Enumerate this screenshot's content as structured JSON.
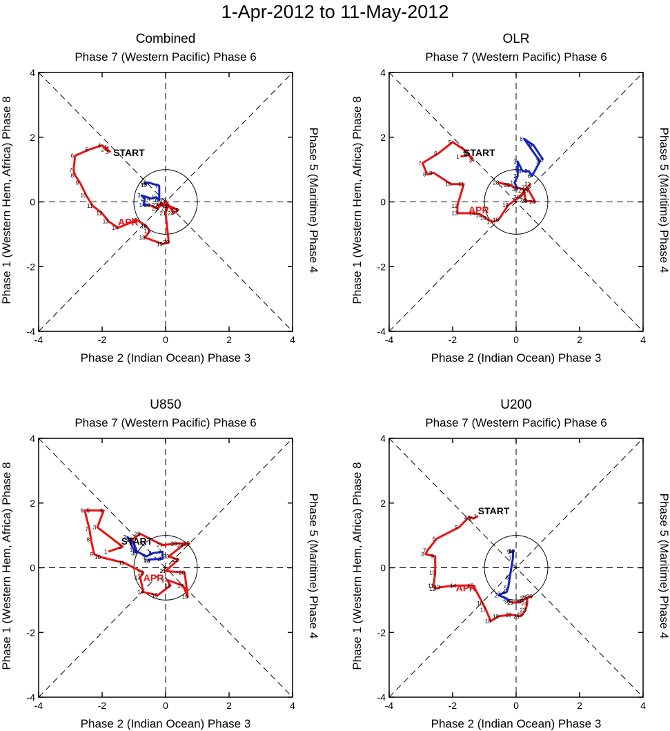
{
  "title": "1-Apr-2012 to 11-May-2012",
  "axis_labels": {
    "top": "Phase 7 (Western Pacific) Phase 6",
    "bottom": "Phase 2 (Indian Ocean) Phase 3",
    "left": "Phase 1 (Western Hem, Africa) Phase 8",
    "right": "Phase 5 (Maritime) Phase 4"
  },
  "colors": {
    "april": "#ee1111",
    "may": "#1122cc",
    "axes": "#000000"
  },
  "chart_data": [
    {
      "type": "line",
      "title": "Combined",
      "xlim": [
        -4,
        4
      ],
      "ylim": [
        -4,
        4
      ],
      "xticks": [
        -4,
        -2,
        0,
        2,
        4
      ],
      "yticks": [
        -4,
        -2,
        0,
        2,
        4
      ],
      "start_label": "START",
      "apr_label": "APR",
      "start_at": [
        -1.65,
        1.42
      ],
      "apr_label_at": [
        -1.5,
        -0.72
      ],
      "series": [
        {
          "name": "APR",
          "color": "#ee1111",
          "points": [
            [
              -1.8,
              1.7
            ],
            [
              -1.9,
              1.62
            ],
            [
              -1.75,
              1.55
            ],
            [
              -2.0,
              1.75
            ],
            [
              -2.4,
              1.62
            ],
            [
              -2.85,
              1.43
            ],
            [
              -2.9,
              0.98
            ],
            [
              -2.85,
              0.82
            ],
            [
              -2.7,
              0.6
            ],
            [
              -2.5,
              0.2
            ],
            [
              -2.3,
              -0.12
            ],
            [
              -2.0,
              -0.35
            ],
            [
              -1.8,
              -0.6
            ],
            [
              -1.5,
              -0.8
            ],
            [
              -0.9,
              -0.56
            ],
            [
              -0.6,
              -0.75
            ],
            [
              -0.5,
              -0.9
            ],
            [
              -0.65,
              -1.1
            ],
            [
              -0.1,
              -1.3
            ],
            [
              0.1,
              -1.25
            ],
            [
              0.0,
              -0.35
            ],
            [
              0.05,
              -0.2
            ],
            [
              0.0,
              0.04
            ],
            [
              0.25,
              -0.35
            ],
            [
              0.4,
              -0.25
            ],
            [
              0.1,
              -0.12
            ],
            [
              -0.25,
              -0.1
            ],
            [
              -0.1,
              -0.05
            ],
            [
              -0.25,
              -0.2
            ],
            [
              -0.5,
              -0.1
            ]
          ],
          "labels": [
            "1",
            "2",
            "3",
            "4",
            "5",
            "6",
            "7",
            "8",
            "9",
            "10",
            "11",
            "12",
            "13",
            "14",
            "15",
            "16",
            "17",
            "18",
            "19",
            "20",
            "21",
            "22",
            "23",
            "24",
            "25",
            "26",
            "27",
            "28",
            "29",
            "30"
          ]
        },
        {
          "name": "MAY",
          "color": "#1122cc",
          "points": [
            [
              -0.5,
              -0.1
            ],
            [
              -0.7,
              -0.1
            ],
            [
              -0.65,
              0.1
            ],
            [
              -0.75,
              0.2
            ],
            [
              -0.45,
              0.1
            ],
            [
              -0.3,
              0.15
            ],
            [
              -0.2,
              0.05
            ],
            [
              -0.2,
              0.5
            ],
            [
              -0.55,
              0.6
            ],
            [
              -0.65,
              0.58
            ],
            [
              -0.6,
              0.52
            ]
          ],
          "labels": [
            "",
            "1",
            "2",
            "3",
            "4",
            "5",
            "6",
            "7",
            "8",
            "9",
            "10"
          ]
        }
      ]
    },
    {
      "type": "line",
      "title": "OLR",
      "xlim": [
        -4,
        4
      ],
      "ylim": [
        -4,
        4
      ],
      "xticks": [
        -4,
        -2,
        0,
        2,
        4
      ],
      "yticks": [
        -4,
        -2,
        0,
        2,
        4
      ],
      "start_label": "START",
      "apr_label": "APR",
      "start_at": [
        -1.65,
        1.42
      ],
      "apr_label_at": [
        -1.5,
        -0.35
      ],
      "series": [
        {
          "name": "APR",
          "color": "#ee1111",
          "points": [
            [
              -1.75,
              1.4
            ],
            [
              -1.5,
              1.45
            ],
            [
              -1.35,
              1.28
            ],
            [
              -1.55,
              1.55
            ],
            [
              -2.0,
              1.85
            ],
            [
              -2.45,
              1.5
            ],
            [
              -2.95,
              1.2
            ],
            [
              -2.8,
              0.85
            ],
            [
              -2.6,
              0.9
            ],
            [
              -2.05,
              0.55
            ],
            [
              -1.65,
              0.55
            ],
            [
              -1.85,
              -0.12
            ],
            [
              -1.85,
              -0.35
            ],
            [
              -1.3,
              -0.35
            ],
            [
              -1.1,
              -0.4
            ],
            [
              -0.95,
              -0.5
            ],
            [
              -0.75,
              -0.62
            ],
            [
              -0.55,
              -0.55
            ],
            [
              -0.25,
              -0.1
            ],
            [
              0.1,
              0.15
            ],
            [
              0.45,
              0.55
            ],
            [
              0.35,
              0.45
            ],
            [
              0.25,
              0.35
            ],
            [
              0.3,
              0.05
            ],
            [
              0.35,
              0.03
            ],
            [
              0.6,
              0.0
            ],
            [
              0.4,
              0.35
            ],
            [
              -0.55,
              0.6
            ],
            [
              -0.2,
              0.52
            ],
            [
              0.05,
              0.4
            ]
          ],
          "labels": [
            "1",
            "2",
            "3",
            "4",
            "5",
            "6",
            "7",
            "8",
            "9",
            "10",
            "11",
            "12",
            "13",
            "14",
            "15",
            "16",
            "17",
            "18",
            "19",
            "20",
            "21",
            "22",
            "23",
            "24",
            "25",
            "26",
            "27",
            "28",
            "29",
            "30"
          ]
        },
        {
          "name": "MAY",
          "color": "#1122cc",
          "points": [
            [
              0.05,
              0.4
            ],
            [
              -0.05,
              0.6
            ],
            [
              0.05,
              0.8
            ],
            [
              0.05,
              1.25
            ],
            [
              0.2,
              0.95
            ],
            [
              0.4,
              0.95
            ],
            [
              0.5,
              0.8
            ],
            [
              0.75,
              1.25
            ],
            [
              0.25,
              1.95
            ],
            [
              0.55,
              1.75
            ],
            [
              0.85,
              1.3
            ]
          ],
          "labels": [
            "",
            "1",
            "2",
            "3",
            "4",
            "5",
            "6",
            "7",
            "8",
            "9",
            "10"
          ]
        }
      ]
    },
    {
      "type": "line",
      "title": "U850",
      "xlim": [
        -4,
        4
      ],
      "ylim": [
        -4,
        4
      ],
      "xticks": [
        -4,
        -2,
        0,
        2,
        4
      ],
      "yticks": [
        -4,
        -2,
        0,
        2,
        4
      ],
      "start_label": "START",
      "apr_label": "APR",
      "start_at": [
        -1.4,
        0.72
      ],
      "apr_label_at": [
        -0.7,
        -0.42
      ],
      "series": [
        {
          "name": "APR",
          "color": "#ee1111",
          "points": [
            [
              -1.8,
              0.5
            ],
            [
              -1.35,
              0.65
            ],
            [
              -2.15,
              1.25
            ],
            [
              -1.95,
              1.77
            ],
            [
              -2.35,
              1.77
            ],
            [
              -2.55,
              1.77
            ],
            [
              -2.4,
              1.2
            ],
            [
              -2.35,
              0.87
            ],
            [
              -2.25,
              0.42
            ],
            [
              -2.05,
              0.33
            ],
            [
              -1.3,
              0.15
            ],
            [
              -0.7,
              -0.15
            ],
            [
              -0.8,
              -0.3
            ],
            [
              -0.7,
              -0.75
            ],
            [
              -0.25,
              -0.85
            ],
            [
              0.15,
              -0.55
            ],
            [
              0.05,
              -0.38
            ],
            [
              0.55,
              -0.55
            ],
            [
              0.7,
              -0.9
            ],
            [
              0.6,
              -0.15
            ],
            [
              0.0,
              -0.1
            ],
            [
              0.4,
              0.25
            ],
            [
              0.1,
              0.35
            ],
            [
              0.55,
              0.7
            ],
            [
              0.75,
              0.75
            ],
            [
              0.35,
              0.75
            ],
            [
              -0.1,
              0.7
            ],
            [
              -0.8,
              1.05
            ],
            [
              -1.05,
              0.87
            ],
            [
              -0.9,
              0.45
            ]
          ],
          "labels": [
            "1",
            "2",
            "3",
            "4",
            "5",
            "6",
            "7",
            "8",
            "9",
            "10",
            "11",
            "12",
            "13",
            "14",
            "15",
            "16",
            "17",
            "18",
            "19",
            "20",
            "21",
            "22",
            "23",
            "24",
            "25",
            "26",
            "27",
            "28",
            "29",
            "30"
          ]
        },
        {
          "name": "MAY",
          "color": "#1122cc",
          "points": [
            [
              -0.9,
              0.45
            ],
            [
              -1.0,
              0.55
            ],
            [
              -1.2,
              0.95
            ],
            [
              -1.0,
              0.75
            ],
            [
              -0.9,
              0.5
            ],
            [
              -0.6,
              0.35
            ],
            [
              -0.4,
              0.45
            ],
            [
              -0.1,
              0.5
            ],
            [
              -0.1,
              0.28
            ],
            [
              -0.55,
              0.25
            ],
            [
              -0.5,
              0.2
            ]
          ],
          "labels": [
            "",
            "1",
            "2",
            "3",
            "4",
            "5",
            "6",
            "7",
            "8",
            "9",
            "10"
          ]
        }
      ]
    },
    {
      "type": "line",
      "title": "U200",
      "xlim": [
        -4,
        4
      ],
      "ylim": [
        -4,
        4
      ],
      "xticks": [
        -4,
        -2,
        0,
        2,
        4
      ],
      "yticks": [
        -4,
        -2,
        0,
        2,
        4
      ],
      "start_label": "START",
      "apr_label": "APR",
      "start_at": [
        -1.2,
        1.65
      ],
      "apr_label_at": [
        -1.9,
        -0.72
      ],
      "series": [
        {
          "name": "APR",
          "color": "#ee1111",
          "points": [
            [
              -1.2,
              1.6
            ],
            [
              -1.35,
              1.52
            ],
            [
              -1.4,
              1.55
            ],
            [
              -1.5,
              1.55
            ],
            [
              -1.8,
              1.25
            ],
            [
              -2.5,
              0.9
            ],
            [
              -2.8,
              0.53
            ],
            [
              -2.85,
              0.42
            ],
            [
              -2.55,
              0.35
            ],
            [
              -2.55,
              -0.15
            ],
            [
              -2.6,
              -0.55
            ],
            [
              -2.55,
              -0.65
            ],
            [
              -2.4,
              -0.6
            ],
            [
              -1.9,
              -0.55
            ],
            [
              -1.35,
              -0.55
            ],
            [
              -1.05,
              -1.1
            ],
            [
              -0.95,
              -1.3
            ],
            [
              -0.8,
              -1.65
            ],
            [
              -0.55,
              -1.5
            ],
            [
              -0.15,
              -1.45
            ],
            [
              0.1,
              -1.5
            ],
            [
              0.2,
              -1.45
            ],
            [
              0.3,
              -1.3
            ],
            [
              0.35,
              -1.1
            ],
            [
              0.35,
              -0.92
            ],
            [
              0.5,
              -0.88
            ],
            [
              0.3,
              -0.95
            ],
            [
              0.15,
              -1.05
            ],
            [
              -0.1,
              -1.08
            ],
            [
              -0.2,
              -1.05
            ]
          ],
          "labels": [
            "1",
            "2",
            "3",
            "4",
            "5",
            "6",
            "7",
            "8",
            "9",
            "10",
            "11",
            "12",
            "13",
            "14",
            "15",
            "16",
            "17",
            "18",
            "19",
            "20",
            "21",
            "22",
            "23",
            "24",
            "25",
            "26",
            "27",
            "28",
            "29",
            "30"
          ]
        },
        {
          "name": "MAY",
          "color": "#1122cc",
          "points": [
            [
              -0.2,
              -1.05
            ],
            [
              -0.3,
              -0.95
            ],
            [
              -0.55,
              -0.85
            ],
            [
              -0.45,
              -0.8
            ],
            [
              -0.3,
              -0.75
            ],
            [
              -0.25,
              -0.62
            ],
            [
              -0.2,
              -0.3
            ],
            [
              -0.1,
              0.3
            ],
            [
              -0.1,
              0.5
            ],
            [
              -0.15,
              0.5
            ],
            [
              -0.05,
              0.52
            ]
          ],
          "labels": [
            "",
            "1",
            "2",
            "3",
            "4",
            "5",
            "6",
            "7",
            "8",
            "9",
            "10"
          ]
        }
      ]
    }
  ]
}
